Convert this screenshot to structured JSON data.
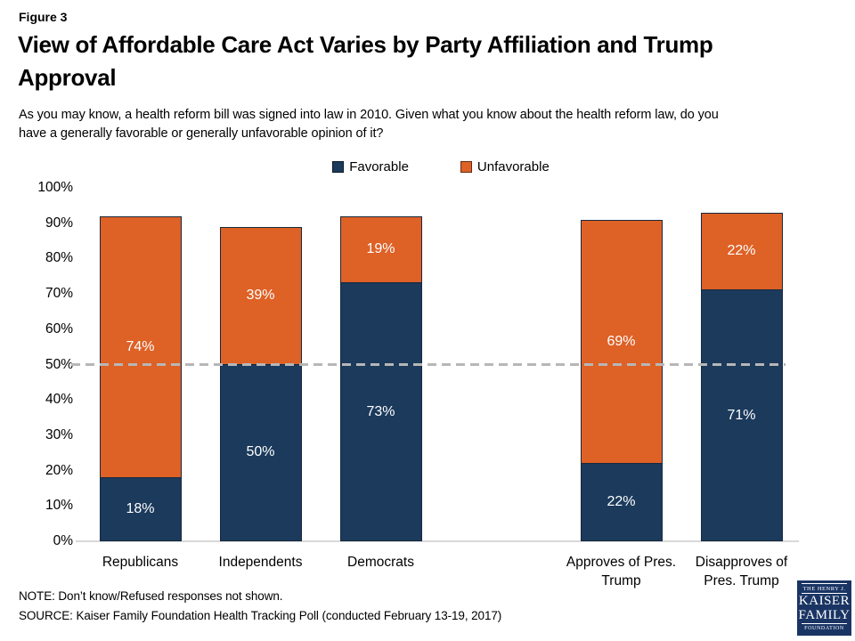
{
  "figure_label": "Figure 3",
  "title": "View of Affordable Care Act Varies by Party Affiliation and Trump Approval",
  "subtitle": "As you may know, a health reform bill was signed into law in 2010. Given what you know about the health reform law, do you have a generally favorable or generally unfavorable opinion of it?",
  "chart_data": {
    "type": "bar",
    "stacked": true,
    "categories": [
      "Republicans",
      "Independents",
      "Democrats",
      "Approves of Pres. Trump",
      "Disapproves of Pres. Trump"
    ],
    "series": [
      {
        "name": "Favorable",
        "color": "#1b3a5c",
        "values": [
          18,
          50,
          73,
          22,
          71
        ]
      },
      {
        "name": "Unfavorable",
        "color": "#de6126",
        "values": [
          74,
          39,
          19,
          69,
          22
        ]
      }
    ],
    "value_label_suffix": "%",
    "ylim": [
      0,
      100
    ],
    "yticks": [
      "100%",
      "90%",
      "80%",
      "70%",
      "60%",
      "50%",
      "40%",
      "30%",
      "20%",
      "10%",
      "0%"
    ],
    "reference_line": {
      "value": 50,
      "style": "dashed",
      "color": "#b7b7b7"
    },
    "legend_position": "top-center",
    "grid": false,
    "gap_between_groups_after_category": "Democrats"
  },
  "note": "NOTE: Don’t know/Refused responses not shown.",
  "source": "SOURCE: Kaiser Family Foundation Health Tracking Poll (conducted February 13-19, 2017)",
  "logo": {
    "line1": "THE HENRY J.",
    "line2": "KAISER",
    "line3": "FAMILY",
    "line4": "FOUNDATION",
    "background": "#1a3564"
  }
}
